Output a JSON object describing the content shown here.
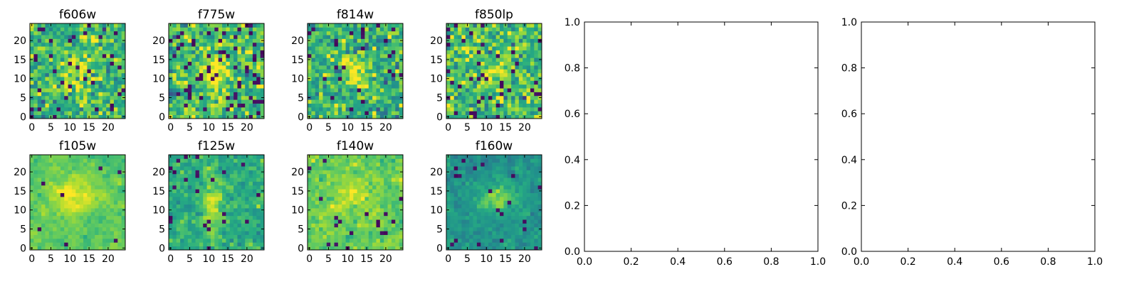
{
  "chart_data": [
    {
      "type": "heatmap",
      "title": "f606w",
      "grid_size": 25,
      "xticks": [
        "0",
        "5",
        "10",
        "15",
        "20"
      ],
      "yticks": [
        "0",
        "5",
        "10",
        "15",
        "20"
      ],
      "xlim": [
        -0.5,
        24.5
      ],
      "ylim": [
        -0.5,
        24.5
      ],
      "colormap": "viridis",
      "appearance": "noisy, mostly green/teal with scattered dark purple pixels; brighter yellow-green patch near center"
    },
    {
      "type": "heatmap",
      "title": "f775w",
      "grid_size": 25,
      "xticks": [
        "0",
        "5",
        "10",
        "15",
        "20"
      ],
      "yticks": [
        "0",
        "5",
        "10",
        "15",
        "20"
      ],
      "xlim": [
        -0.5,
        24.5
      ],
      "ylim": [
        -0.5,
        24.5
      ],
      "colormap": "viridis",
      "appearance": "noisy green with bright central column near x≈12"
    },
    {
      "type": "heatmap",
      "title": "f814w",
      "grid_size": 25,
      "xticks": [
        "0",
        "5",
        "10",
        "15",
        "20"
      ],
      "yticks": [
        "0",
        "5",
        "10",
        "15",
        "20"
      ],
      "xlim": [
        -0.5,
        24.5
      ],
      "ylim": [
        -0.5,
        24.5
      ],
      "colormap": "viridis",
      "appearance": "noisy green with bright center around (12,12)"
    },
    {
      "type": "heatmap",
      "title": "f850lp",
      "grid_size": 25,
      "xticks": [
        "0",
        "5",
        "10",
        "15",
        "20"
      ],
      "yticks": [
        "0",
        "5",
        "10",
        "15",
        "20"
      ],
      "xlim": [
        -0.5,
        24.5
      ],
      "ylim": [
        -0.5,
        24.5
      ],
      "colormap": "viridis",
      "appearance": "noisy green-yellow with several dark pixels near top"
    },
    {
      "type": "heatmap",
      "title": "f105w",
      "grid_size": 25,
      "xticks": [
        "0",
        "5",
        "10",
        "15",
        "20"
      ],
      "yticks": [
        "0",
        "5",
        "10",
        "15",
        "20"
      ],
      "xlim": [
        -0.5,
        24.5
      ],
      "ylim": [
        -0.5,
        24.5
      ],
      "colormap": "viridis",
      "appearance": "smoother light green/yellow with bright center near (12,13); dark pixels at right edge"
    },
    {
      "type": "heatmap",
      "title": "f125w",
      "grid_size": 25,
      "xticks": [
        "0",
        "5",
        "10",
        "15",
        "20"
      ],
      "yticks": [
        "0",
        "5",
        "10",
        "15",
        "20"
      ],
      "xlim": [
        -0.5,
        24.5
      ],
      "ylim": [
        -0.5,
        24.5
      ],
      "colormap": "viridis",
      "appearance": "green/teal with bright vertical column near x≈11 and several dark pixels"
    },
    {
      "type": "heatmap",
      "title": "f140w",
      "grid_size": 25,
      "xticks": [
        "0",
        "5",
        "10",
        "15",
        "20"
      ],
      "yticks": [
        "0",
        "5",
        "10",
        "15",
        "20"
      ],
      "xlim": [
        -0.5,
        24.5
      ],
      "ylim": [
        -0.5,
        24.5
      ],
      "colormap": "viridis",
      "appearance": "bright yellow-green with bright center; few dark pixels"
    },
    {
      "type": "heatmap",
      "title": "f160w",
      "grid_size": 25,
      "xticks": [
        "0",
        "5",
        "10",
        "15",
        "20"
      ],
      "yticks": [
        "0",
        "5",
        "10",
        "15",
        "20"
      ],
      "xlim": [
        -0.5,
        24.5
      ],
      "ylim": [
        -0.5,
        24.5
      ],
      "colormap": "viridis",
      "appearance": "darker teal/green with modest bright center near (13,13); scattered dark pixels"
    },
    {
      "type": "line",
      "title": "",
      "xlim": [
        0.0,
        1.0
      ],
      "ylim": [
        0.0,
        1.0
      ],
      "xticks": [
        "0.0",
        "0.2",
        "0.4",
        "0.6",
        "0.8",
        "1.0"
      ],
      "yticks": [
        "0.0",
        "0.2",
        "0.4",
        "0.6",
        "0.8",
        "1.0"
      ],
      "series": []
    },
    {
      "type": "line",
      "title": "",
      "xlim": [
        0.0,
        1.0
      ],
      "ylim": [
        0.0,
        1.0
      ],
      "xticks": [
        "0.0",
        "0.2",
        "0.4",
        "0.6",
        "0.8",
        "1.0"
      ],
      "yticks": [
        "0.0",
        "0.2",
        "0.4",
        "0.6",
        "0.8",
        "1.0"
      ],
      "series": []
    }
  ]
}
